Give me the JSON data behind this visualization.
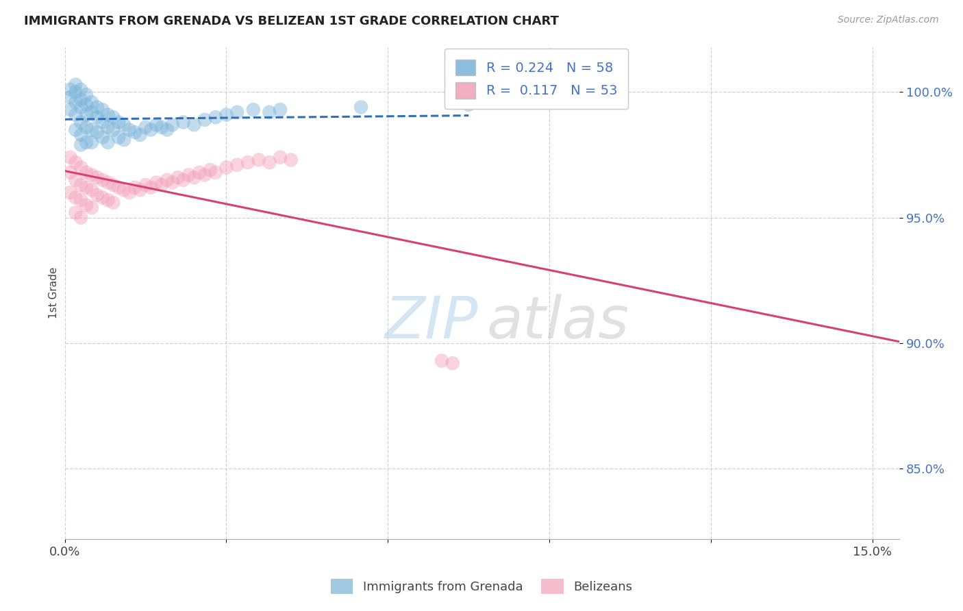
{
  "title": "IMMIGRANTS FROM GRENADA VS BELIZEAN 1ST GRADE CORRELATION CHART",
  "source": "Source: ZipAtlas.com",
  "ylabel": "1st Grade",
  "xlim": [
    0.0,
    0.155
  ],
  "ylim": [
    0.822,
    1.018
  ],
  "xtick_vals": [
    0.0,
    0.03,
    0.06,
    0.09,
    0.12,
    0.15
  ],
  "xtick_labels": [
    "0.0%",
    "",
    "",
    "",
    "",
    "15.0%"
  ],
  "ytick_vals": [
    0.85,
    0.9,
    0.95,
    1.0
  ],
  "ytick_labels": [
    "85.0%",
    "90.0%",
    "95.0%",
    "100.0%"
  ],
  "blue_R": 0.224,
  "blue_N": 58,
  "pink_R": 0.117,
  "pink_N": 53,
  "blue_color": "#7ab3d8",
  "pink_color": "#f2a0b8",
  "blue_line_color": "#3070b8",
  "pink_line_color": "#d84070",
  "legend_label_blue": "Immigrants from Grenada",
  "legend_label_pink": "Belizeans",
  "blue_x": [
    0.001,
    0.001,
    0.001,
    0.002,
    0.002,
    0.002,
    0.002,
    0.002,
    0.003,
    0.003,
    0.003,
    0.003,
    0.003,
    0.003,
    0.004,
    0.004,
    0.004,
    0.004,
    0.004,
    0.005,
    0.005,
    0.005,
    0.005,
    0.006,
    0.006,
    0.006,
    0.007,
    0.007,
    0.007,
    0.008,
    0.008,
    0.008,
    0.009,
    0.009,
    0.01,
    0.01,
    0.011,
    0.011,
    0.012,
    0.013,
    0.014,
    0.015,
    0.016,
    0.017,
    0.018,
    0.019,
    0.02,
    0.022,
    0.024,
    0.026,
    0.028,
    0.03,
    0.032,
    0.035,
    0.038,
    0.04,
    0.055,
    0.075
  ],
  "blue_y": [
    0.998,
    1.001,
    0.993,
    0.996,
    1.0,
    0.991,
    0.985,
    1.003,
    0.997,
    1.001,
    0.994,
    0.988,
    0.983,
    0.979,
    0.995,
    0.999,
    0.991,
    0.986,
    0.98,
    0.996,
    0.992,
    0.985,
    0.98,
    0.994,
    0.99,
    0.984,
    0.993,
    0.988,
    0.982,
    0.991,
    0.986,
    0.98,
    0.99,
    0.985,
    0.988,
    0.982,
    0.987,
    0.981,
    0.985,
    0.984,
    0.983,
    0.986,
    0.985,
    0.987,
    0.986,
    0.985,
    0.987,
    0.988,
    0.987,
    0.989,
    0.99,
    0.991,
    0.992,
    0.993,
    0.992,
    0.993,
    0.994,
    0.995
  ],
  "pink_x": [
    0.001,
    0.001,
    0.001,
    0.002,
    0.002,
    0.002,
    0.002,
    0.003,
    0.003,
    0.003,
    0.003,
    0.004,
    0.004,
    0.004,
    0.005,
    0.005,
    0.005,
    0.006,
    0.006,
    0.007,
    0.007,
    0.008,
    0.008,
    0.009,
    0.009,
    0.01,
    0.011,
    0.012,
    0.013,
    0.014,
    0.015,
    0.016,
    0.017,
    0.018,
    0.019,
    0.02,
    0.021,
    0.022,
    0.023,
    0.024,
    0.025,
    0.026,
    0.027,
    0.028,
    0.03,
    0.032,
    0.034,
    0.036,
    0.038,
    0.04,
    0.042,
    0.07,
    0.072
  ],
  "pink_y": [
    0.974,
    0.968,
    0.96,
    0.972,
    0.965,
    0.958,
    0.952,
    0.97,
    0.963,
    0.957,
    0.95,
    0.968,
    0.962,
    0.955,
    0.967,
    0.961,
    0.954,
    0.966,
    0.959,
    0.965,
    0.958,
    0.964,
    0.957,
    0.963,
    0.956,
    0.962,
    0.961,
    0.96,
    0.962,
    0.961,
    0.963,
    0.962,
    0.964,
    0.963,
    0.965,
    0.964,
    0.966,
    0.965,
    0.967,
    0.966,
    0.968,
    0.967,
    0.969,
    0.968,
    0.97,
    0.971,
    0.972,
    0.973,
    0.972,
    0.974,
    0.973,
    0.893,
    0.892
  ],
  "watermark_zip": "ZIP",
  "watermark_atlas": "atlas"
}
